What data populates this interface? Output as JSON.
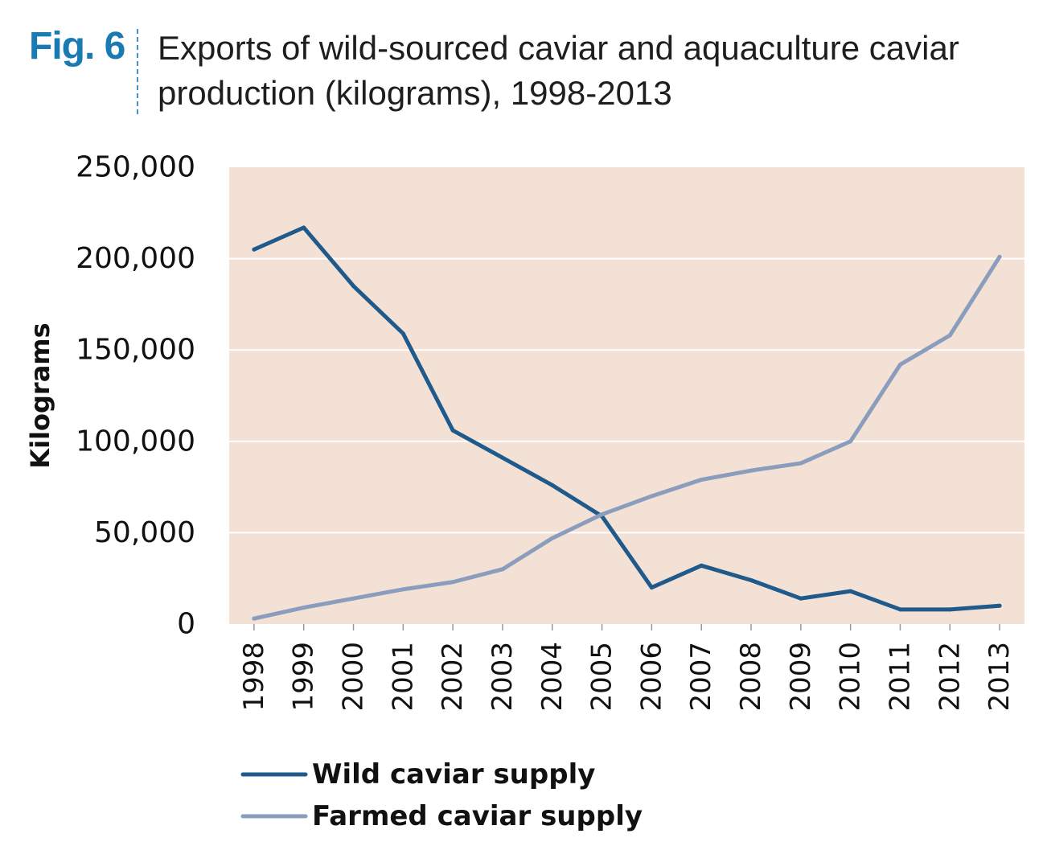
{
  "figure": {
    "label": "Fig. 6",
    "title_line1": "Exports of wild-sourced caviar and aquaculture caviar",
    "title_line2": "production (kilograms), 1998-2013"
  },
  "chart_data": {
    "type": "line",
    "title": "Exports of wild-sourced caviar and aquaculture caviar production (kilograms), 1998-2013",
    "xlabel": "",
    "ylabel": "Kilograms",
    "x": [
      "1998",
      "1999",
      "2000",
      "2001",
      "2002",
      "2003",
      "2004",
      "2005",
      "2006",
      "2007",
      "2008",
      "2009",
      "2010",
      "2011",
      "2012",
      "2013"
    ],
    "ylim": [
      0,
      250000
    ],
    "yticks": [
      0,
      50000,
      100000,
      150000,
      200000,
      250000
    ],
    "ytick_labels": [
      "0",
      "50,000",
      "100,000",
      "150,000",
      "200,000",
      "250,000"
    ],
    "grid": true,
    "legend_position": "bottom-left",
    "background": "#f3e1d5",
    "series": [
      {
        "name": "Wild caviar supply",
        "color": "#1f5a8b",
        "values": [
          205000,
          217000,
          185000,
          159000,
          106000,
          91000,
          76000,
          59000,
          20000,
          32000,
          24000,
          14000,
          18000,
          8000,
          8000,
          10000
        ]
      },
      {
        "name": "Farmed caviar supply",
        "color": "#8a9dbd",
        "values": [
          3000,
          9000,
          14000,
          19000,
          23000,
          30000,
          47000,
          60000,
          70000,
          79000,
          84000,
          88000,
          100000,
          142000,
          158000,
          201000
        ]
      }
    ]
  }
}
